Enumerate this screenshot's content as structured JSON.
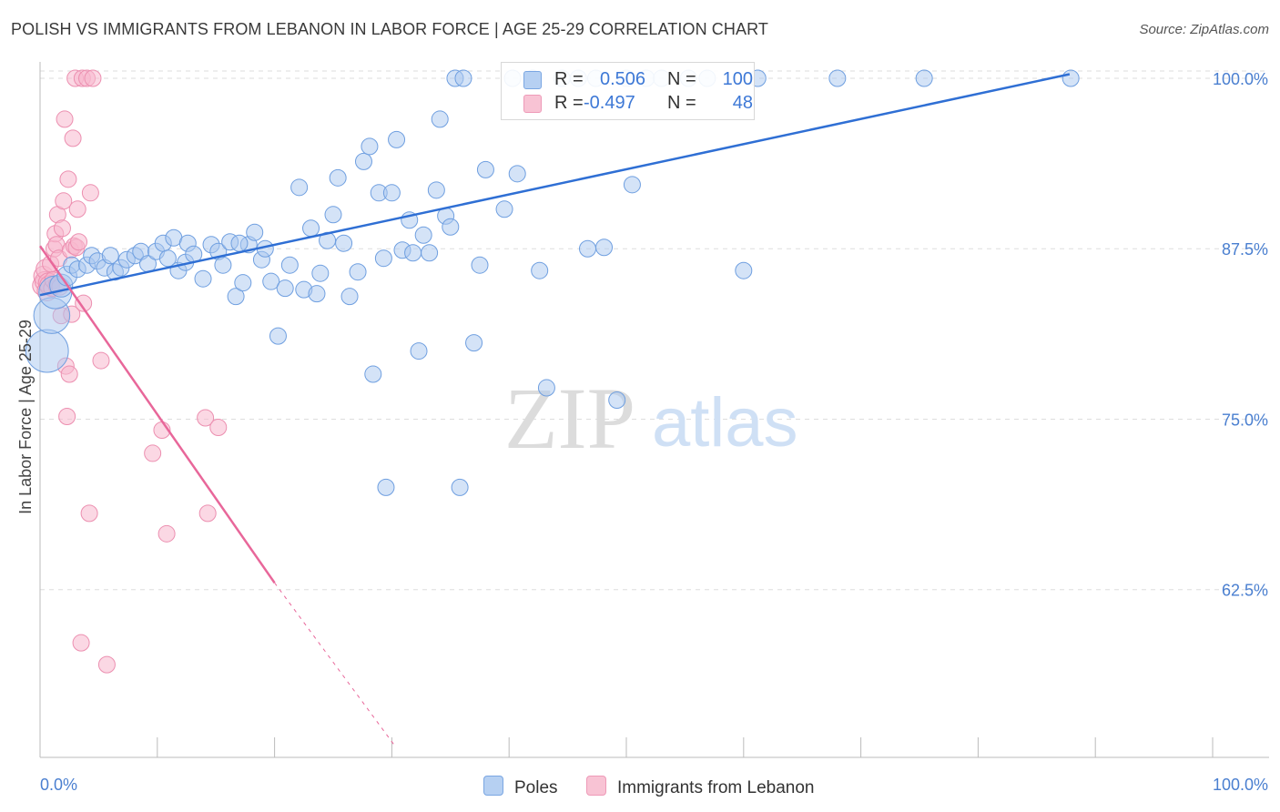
{
  "title": "POLISH VS IMMIGRANTS FROM LEBANON IN LABOR FORCE | AGE 25-29 CORRELATION CHART",
  "source": "Source: ZipAtlas.com",
  "watermark": {
    "zip": "ZIP",
    "atlas": "atlas"
  },
  "legend": {
    "poles": {
      "r_label": "R =",
      "r_value": "0.506",
      "n_label": "N =",
      "n_value": "100"
    },
    "lebanon": {
      "r_label": "R =",
      "r_value": "-0.497",
      "n_label": "N =",
      "n_value": "48"
    }
  },
  "bottom_legend": {
    "poles": "Poles",
    "lebanon": "Immigrants from Lebanon"
  },
  "colors": {
    "blue_fill": "#a9c7ef",
    "blue_stroke": "#6f9fe0",
    "blue_line": "#2f6fd4",
    "pink_fill": "#f7b8cd",
    "pink_stroke": "#ec8fb0",
    "pink_line": "#e8679a",
    "grid": "#dddddd",
    "tick_text": "#4a7fd0"
  },
  "chart_data": {
    "type": "scatter",
    "title": "POLISH VS IMMIGRANTS FROM LEBANON IN LABOR FORCE | AGE 25-29 CORRELATION CHART",
    "xlabel": "",
    "ylabel": "In Labor Force | Age 25-29",
    "xlim": [
      0,
      100
    ],
    "ylim": [
      50.2,
      101.2
    ],
    "x_tick_labels": [
      "0.0%",
      "100.0%"
    ],
    "y_ticks": [
      62.5,
      75.0,
      87.5,
      100.0
    ],
    "y_tick_labels": [
      "62.5%",
      "75.0%",
      "87.5%",
      "100.0%"
    ],
    "grid": true,
    "series": [
      {
        "name": "Poles",
        "r": 0.506,
        "n": 100,
        "trend": {
          "x": [
            0,
            87.8
          ],
          "y": [
            84.1,
            100.3
          ]
        },
        "points": [
          [
            0.6,
            80.0,
            26
          ],
          [
            1.0,
            82.6,
            22
          ],
          [
            1.3,
            84.3,
            20
          ],
          [
            1.8,
            84.8,
            14
          ],
          [
            2.3,
            85.5,
            12
          ],
          [
            2.7,
            86.3,
            10
          ],
          [
            3.2,
            86.0,
            10
          ],
          [
            4.0,
            86.3,
            10
          ],
          [
            4.4,
            87.0,
            10
          ],
          [
            4.9,
            86.6,
            10
          ],
          [
            5.5,
            86.1,
            10
          ],
          [
            6.0,
            87.0,
            10
          ],
          [
            6.4,
            85.8,
            10
          ],
          [
            6.9,
            86.1,
            10
          ],
          [
            7.4,
            86.7,
            10
          ],
          [
            8.1,
            87.0,
            10
          ],
          [
            8.6,
            87.3,
            10
          ],
          [
            9.2,
            86.4,
            10
          ],
          [
            9.9,
            87.3,
            10
          ],
          [
            10.5,
            87.9,
            10
          ],
          [
            10.9,
            86.8,
            10
          ],
          [
            11.4,
            88.3,
            10
          ],
          [
            11.8,
            85.9,
            10
          ],
          [
            12.4,
            86.5,
            10
          ],
          [
            12.6,
            87.9,
            10
          ],
          [
            13.1,
            87.1,
            10
          ],
          [
            13.9,
            85.3,
            10
          ],
          [
            14.6,
            87.8,
            10
          ],
          [
            15.2,
            87.3,
            10
          ],
          [
            15.6,
            86.3,
            10
          ],
          [
            16.2,
            88.0,
            10
          ],
          [
            16.7,
            84.0,
            10
          ],
          [
            17.3,
            85.0,
            10
          ],
          [
            17.8,
            87.8,
            10
          ],
          [
            18.3,
            88.7,
            10
          ],
          [
            18.9,
            86.7,
            10
          ],
          [
            19.2,
            87.5,
            10
          ],
          [
            19.7,
            85.1,
            10
          ],
          [
            20.3,
            81.1,
            10
          ],
          [
            20.9,
            84.6,
            10
          ],
          [
            21.3,
            86.3,
            10
          ],
          [
            22.1,
            92.0,
            10
          ],
          [
            22.5,
            84.5,
            10
          ],
          [
            23.1,
            89.0,
            10
          ],
          [
            23.6,
            84.2,
            10
          ],
          [
            23.9,
            85.7,
            10
          ],
          [
            24.5,
            88.1,
            10
          ],
          [
            25.0,
            90.0,
            10
          ],
          [
            25.4,
            92.7,
            10
          ],
          [
            25.9,
            87.9,
            10
          ],
          [
            26.4,
            84.0,
            10
          ],
          [
            27.1,
            85.8,
            10
          ],
          [
            27.6,
            93.9,
            10
          ],
          [
            28.1,
            95.0,
            10
          ],
          [
            28.4,
            78.3,
            10
          ],
          [
            28.9,
            91.6,
            10
          ],
          [
            29.5,
            70.0,
            10
          ],
          [
            30.0,
            91.6,
            10
          ],
          [
            30.4,
            95.5,
            10
          ],
          [
            30.9,
            87.4,
            10
          ],
          [
            31.5,
            89.6,
            10
          ],
          [
            31.8,
            87.2,
            10
          ],
          [
            32.3,
            80.0,
            10
          ],
          [
            32.7,
            88.5,
            10
          ],
          [
            33.2,
            87.2,
            10
          ],
          [
            33.8,
            91.8,
            10
          ],
          [
            34.1,
            97.0,
            10
          ],
          [
            34.6,
            89.9,
            10
          ],
          [
            35.0,
            89.1,
            10
          ],
          [
            35.4,
            100.0,
            10
          ],
          [
            35.8,
            70.0,
            10
          ],
          [
            36.1,
            100.0,
            10
          ],
          [
            37.0,
            80.6,
            10
          ],
          [
            37.5,
            86.3,
            10
          ],
          [
            38.0,
            93.3,
            10
          ],
          [
            39.6,
            90.4,
            10
          ],
          [
            40.3,
            100.0,
            10
          ],
          [
            40.7,
            93.0,
            10
          ],
          [
            42.0,
            100.0,
            10
          ],
          [
            42.6,
            85.9,
            10
          ],
          [
            43.2,
            77.3,
            10
          ],
          [
            44.5,
            100.0,
            10
          ],
          [
            45.9,
            100.0,
            10
          ],
          [
            46.7,
            87.5,
            10
          ],
          [
            47.4,
            100.0,
            10
          ],
          [
            48.1,
            87.6,
            10
          ],
          [
            49.2,
            76.4,
            10
          ],
          [
            50.0,
            100.0,
            10
          ],
          [
            50.5,
            92.2,
            10
          ],
          [
            51.7,
            100.0,
            10
          ],
          [
            53.0,
            100.0,
            10
          ],
          [
            55.3,
            100.0,
            10
          ],
          [
            56.9,
            100.0,
            10
          ],
          [
            60.0,
            85.9,
            10
          ],
          [
            61.2,
            100.0,
            10
          ],
          [
            68.0,
            100.0,
            10
          ],
          [
            75.4,
            100.0,
            10
          ],
          [
            87.9,
            100.0,
            10
          ],
          [
            17.0,
            87.9,
            10
          ],
          [
            29.3,
            86.8,
            10
          ]
        ]
      },
      {
        "name": "Immigrants from Lebanon",
        "r": -0.497,
        "n": 48,
        "trend": {
          "x": [
            0,
            20
          ],
          "y": [
            87.7,
            63.0
          ]
        },
        "trend_dashed": {
          "x": [
            20,
            30.3
          ],
          "y": [
            63.0,
            51.0
          ]
        },
        "points": [
          [
            0.2,
            84.8,
            12
          ],
          [
            0.3,
            85.5,
            12
          ],
          [
            0.4,
            85.1,
            12
          ],
          [
            0.5,
            86.0,
            12
          ],
          [
            0.6,
            84.4,
            12
          ],
          [
            0.7,
            85.0,
            12
          ],
          [
            0.8,
            84.8,
            12
          ],
          [
            0.9,
            86.4,
            10
          ],
          [
            1.0,
            84.6,
            10
          ],
          [
            1.1,
            85.2,
            10
          ],
          [
            1.2,
            87.5,
            10
          ],
          [
            1.3,
            88.6,
            10
          ],
          [
            1.4,
            87.8,
            10
          ],
          [
            1.4,
            84.8,
            10
          ],
          [
            1.5,
            90.0,
            10
          ],
          [
            1.6,
            86.8,
            10
          ],
          [
            1.7,
            84.7,
            10
          ],
          [
            1.8,
            82.6,
            10
          ],
          [
            1.9,
            89.0,
            10
          ],
          [
            2.0,
            91.0,
            10
          ],
          [
            2.1,
            97.0,
            10
          ],
          [
            2.2,
            78.9,
            10
          ],
          [
            2.3,
            75.2,
            10
          ],
          [
            2.4,
            92.6,
            10
          ],
          [
            2.5,
            78.3,
            10
          ],
          [
            2.6,
            87.4,
            10
          ],
          [
            2.7,
            82.7,
            10
          ],
          [
            2.8,
            95.6,
            10
          ],
          [
            2.9,
            87.7,
            10
          ],
          [
            3.0,
            100.0,
            10
          ],
          [
            3.1,
            87.6,
            10
          ],
          [
            3.2,
            90.4,
            10
          ],
          [
            3.3,
            88.0,
            10
          ],
          [
            3.5,
            58.6,
            10
          ],
          [
            3.6,
            100.0,
            10
          ],
          [
            3.7,
            83.5,
            10
          ],
          [
            4.0,
            100.0,
            10
          ],
          [
            4.2,
            68.1,
            10
          ],
          [
            4.3,
            91.6,
            10
          ],
          [
            4.5,
            100.0,
            10
          ],
          [
            5.2,
            79.3,
            10
          ],
          [
            5.7,
            57.0,
            10
          ],
          [
            9.6,
            72.5,
            10
          ],
          [
            10.4,
            74.2,
            10
          ],
          [
            10.8,
            66.6,
            10
          ],
          [
            14.1,
            75.1,
            10
          ],
          [
            14.3,
            68.1,
            10
          ],
          [
            15.2,
            74.4,
            10
          ]
        ]
      }
    ]
  }
}
